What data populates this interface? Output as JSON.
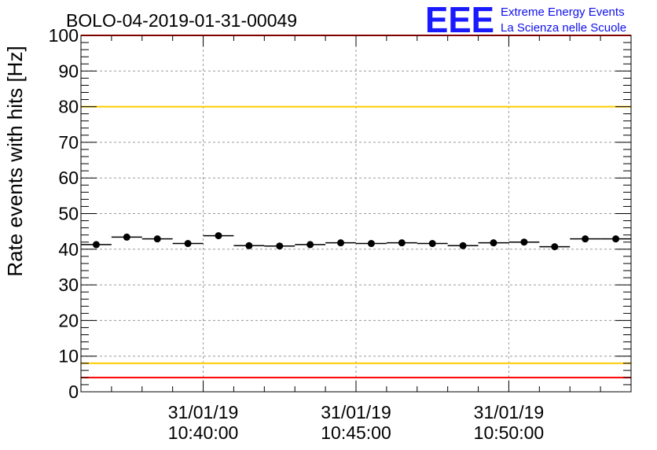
{
  "chart_data": {
    "type": "scatter",
    "title": "BOLO-04-2019-01-31-00049",
    "xlabel": "",
    "ylabel": "Rate events with hits [Hz]",
    "ylim": [
      0,
      100
    ],
    "yticks": [
      "0",
      "10",
      "20",
      "30",
      "40",
      "50",
      "60",
      "70",
      "80",
      "90",
      "100"
    ],
    "xrange_minutes": [
      36,
      54
    ],
    "xticks": [
      {
        "minute": 40,
        "date": "31/01/19",
        "time": "10:40:00"
      },
      {
        "minute": 45,
        "date": "31/01/19",
        "time": "10:45:00"
      },
      {
        "minute": 50,
        "date": "31/01/19",
        "time": "10:50:00"
      }
    ],
    "bin_width_minutes": 1,
    "x_minutes": [
      36.5,
      37.5,
      38.5,
      39.5,
      40.5,
      41.5,
      42.5,
      43.5,
      44.5,
      45.5,
      46.5,
      47.5,
      48.5,
      49.5,
      50.5,
      51.5,
      52.5,
      53.5
    ],
    "values": [
      41.3,
      43.4,
      42.9,
      41.6,
      43.8,
      41.0,
      40.9,
      41.3,
      41.8,
      41.6,
      41.8,
      41.6,
      41.0,
      41.8,
      42.0,
      40.7,
      42.9,
      42.9
    ],
    "reference_lines": [
      {
        "value": 100,
        "color": "#ff0000"
      },
      {
        "value": 80,
        "color": "#ffcc00"
      },
      {
        "value": 8,
        "color": "#ffcc00"
      },
      {
        "value": 4,
        "color": "#ff0000"
      }
    ],
    "grid": true
  },
  "logo": {
    "mark": "EEE",
    "line1": "Extreme Energy Events",
    "line2": "La Scienza nelle Scuole",
    "color": "#1a1aff"
  }
}
